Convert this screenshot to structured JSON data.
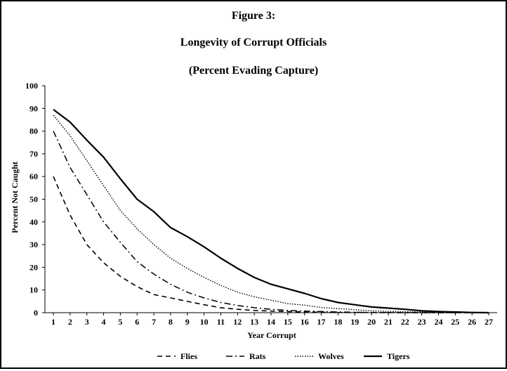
{
  "chart_data": {
    "type": "line",
    "title": "Figure 3:",
    "subtitle": "Longevity of Corrupt Officials",
    "subtitle2": "(Percent Evading Capture)",
    "xlabel": "Year Corrupt",
    "ylabel": "Percent Not Caught",
    "ylim": [
      0,
      100
    ],
    "yticks": [
      0,
      10,
      20,
      30,
      40,
      50,
      60,
      70,
      80,
      90,
      100
    ],
    "x": [
      1,
      2,
      3,
      4,
      5,
      6,
      7,
      8,
      9,
      10,
      11,
      12,
      13,
      14,
      15,
      16,
      17,
      18,
      19,
      20,
      21,
      22,
      23,
      24,
      25,
      26,
      27
    ],
    "x_tick_labels": [
      "1",
      "2",
      "3",
      "4",
      "5",
      "6",
      "7",
      "8",
      "9",
      "10",
      "11",
      "12",
      "13",
      "14",
      "15",
      "16",
      "17",
      "18",
      "19",
      "20",
      "21",
      "22",
      "23",
      "24",
      "25",
      "26",
      "27"
    ],
    "grid": false,
    "legend_position": "bottom",
    "series": [
      {
        "name": "Flies",
        "style": "dashed",
        "values": [
          60,
          43,
          30,
          22,
          16,
          11.5,
          8,
          6.5,
          5,
          3.5,
          2.2,
          1.5,
          1,
          0.7,
          0.5,
          0.3,
          0.2,
          0.1,
          0.1,
          0.1,
          0,
          0,
          0,
          0,
          0,
          0,
          0
        ]
      },
      {
        "name": "Rats",
        "style": "dash-dot",
        "values": [
          80,
          64,
          52,
          40,
          31,
          22.5,
          17,
          12.5,
          9,
          6.5,
          4.5,
          3.2,
          2.2,
          1.5,
          1,
          0.7,
          0.5,
          0.3,
          0.2,
          0.1,
          0.1,
          0,
          0,
          0,
          0,
          0,
          0
        ]
      },
      {
        "name": "Wolves",
        "style": "dotted",
        "values": [
          87,
          78,
          67,
          56,
          45,
          37,
          30,
          24,
          19.5,
          15.5,
          12,
          9,
          7,
          5.5,
          4,
          3.3,
          2.3,
          1.8,
          1.3,
          0.8,
          0.6,
          0.4,
          0.3,
          0.2,
          0.1,
          0.1,
          0
        ]
      },
      {
        "name": "Tigers",
        "style": "solid",
        "values": [
          89.5,
          84,
          76,
          68.5,
          59,
          50,
          44.5,
          37.5,
          33.5,
          29,
          24,
          19.5,
          15.5,
          12.5,
          10.5,
          8.5,
          6.2,
          4.5,
          3.5,
          2.5,
          2,
          1.5,
          0.8,
          0.5,
          0.3,
          0.1,
          0
        ]
      }
    ]
  }
}
